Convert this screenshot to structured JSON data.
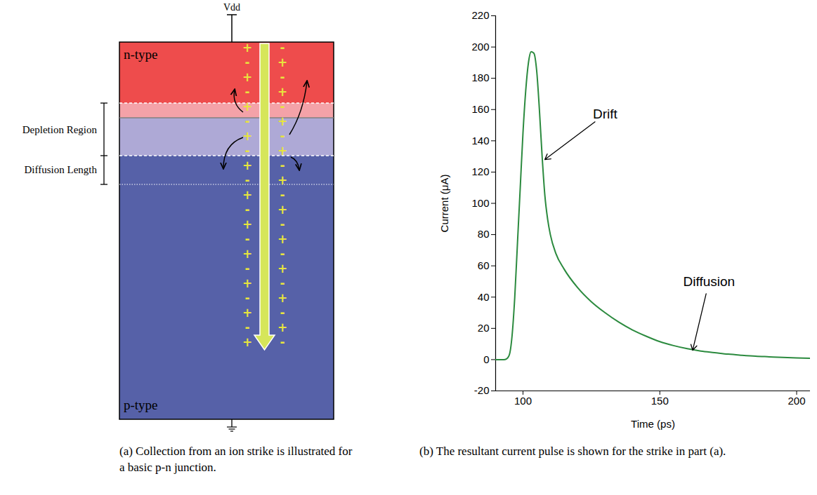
{
  "diagram": {
    "terminal_top": "Vdd",
    "regions": [
      "n-type",
      "p-type"
    ],
    "dimension_labels": [
      "Depletion Region",
      "Diffusion Length"
    ],
    "charges": {
      "left": [
        "+",
        "-",
        "+",
        "-",
        "+",
        "-",
        "+",
        "-",
        "+",
        "-",
        "+",
        "-",
        "+",
        "-",
        "+",
        "-",
        "+",
        "-",
        "+",
        "-",
        "+"
      ],
      "right": [
        "-",
        "+",
        "-",
        "+",
        "-",
        "+",
        "-",
        "+",
        "-",
        "+",
        "-",
        "+",
        "-",
        "+",
        "-",
        "+",
        "-",
        "+",
        "-",
        "+",
        "-"
      ]
    }
  },
  "chart_data": {
    "type": "line",
    "x_label": "Time (ps)",
    "y_label": "Current (μA)",
    "x": [
      90,
      93,
      94,
      95,
      96,
      97,
      98,
      99,
      100,
      101,
      102,
      103,
      104,
      105,
      106,
      107,
      108,
      109,
      110,
      112,
      115,
      120,
      125,
      130,
      135,
      140,
      145,
      150,
      155,
      160,
      165,
      170,
      175,
      180,
      185,
      190,
      195,
      200,
      205
    ],
    "values": [
      0,
      0,
      0.5,
      3,
      15,
      40,
      75,
      110,
      145,
      172,
      190,
      197,
      196,
      185,
      160,
      130,
      105,
      90,
      80,
      68,
      58,
      46,
      37,
      30,
      24,
      19,
      15,
      11.5,
      9,
      7,
      5.5,
      4.5,
      3.5,
      2.8,
      2.2,
      1.8,
      1.4,
      1.1,
      0.9
    ],
    "color": "#2b8a3e",
    "xlim": [
      90,
      205
    ],
    "xticks": [
      100,
      150,
      200
    ],
    "ylim": [
      -20,
      220
    ],
    "yticks": [
      -20,
      0,
      20,
      40,
      60,
      80,
      100,
      120,
      140,
      160,
      180,
      200,
      220
    ],
    "grid": false,
    "annotations": [
      {
        "text": "Drift",
        "x": 130,
        "y": 157,
        "arrow_x": 108,
        "arrow_y": 128
      },
      {
        "text": "Diffusion",
        "x": 168,
        "y": 50,
        "arrow_x": 162,
        "arrow_y": 6
      }
    ]
  },
  "captions": [
    "(a) Collection from an ion strike is illustrated for a basic p-n junction.",
    "(b) The resultant current pulse is shown for the strike in part (a)."
  ]
}
